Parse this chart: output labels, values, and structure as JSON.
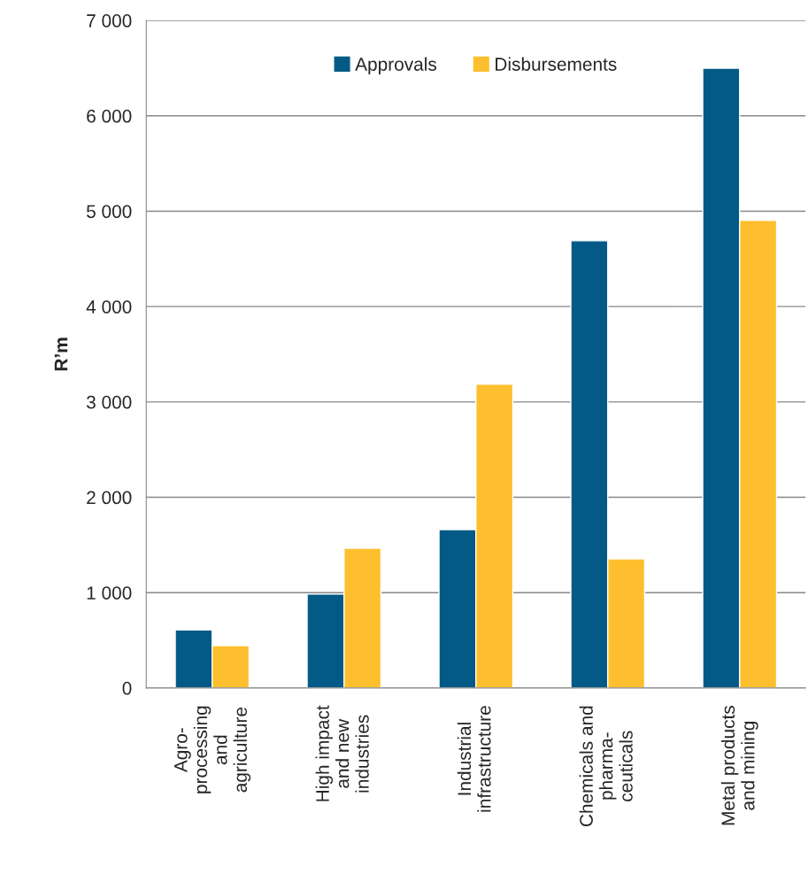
{
  "chart_data": {
    "type": "bar",
    "ylabel": "R’m",
    "categories": [
      "Agro-\nprocessing\nand\nagriculture",
      "High impact\nand new\nindustries",
      "Industrial\ninfrastructure",
      "Chemicals and\npharma-\nceuticals",
      "Metal products\nand mining"
    ],
    "series": [
      {
        "name": "Approvals",
        "color": "#045a86",
        "values": [
          610,
          985,
          1660,
          4690,
          6500
        ]
      },
      {
        "name": "Disbursements",
        "color": "#fdbf2d",
        "values": [
          445,
          1465,
          3185,
          1355,
          4905
        ]
      }
    ],
    "ylim": [
      0,
      7000
    ],
    "yticks": [
      0,
      {
        "value": 1000,
        "label": "1 000"
      },
      {
        "value": 2000,
        "label": "2 000"
      },
      {
        "value": 3000,
        "label": "3 000"
      },
      {
        "value": 4000,
        "label": "4 000"
      },
      {
        "value": 5000,
        "label": "5 000"
      },
      {
        "value": 6000,
        "label": "6 000"
      },
      {
        "value": 7000,
        "label": "7 000"
      }
    ],
    "grid": "y",
    "legend": "top"
  }
}
